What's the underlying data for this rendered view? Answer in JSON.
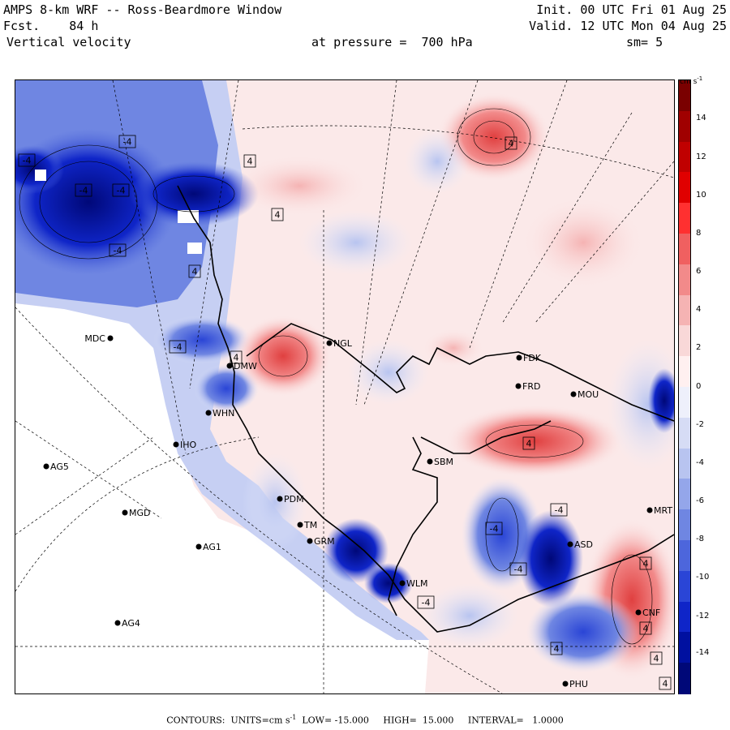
{
  "header": {
    "title_left": "AMPS 8-km WRF -- Ross-Beardmore Window",
    "fcst_label": "Fcst.    84 h",
    "field": "Vertical velocity",
    "init": "Init. 00 UTC Fri 01 Aug 25",
    "valid": "Valid. 12 UTC Mon 04 Aug 25",
    "pressure": "at pressure =  700 hPa",
    "smooth": "sm= 5"
  },
  "colorbar": {
    "units": "cm s",
    "units_exp": "-1",
    "ticks": [
      "14",
      "12",
      "10",
      "8",
      "6",
      "4",
      "2",
      "0",
      "-2",
      "-4",
      "-6",
      "-8",
      "-10",
      "-12",
      "-14"
    ],
    "colors": [
      "#7a0000",
      "#a00000",
      "#c00000",
      "#e00000",
      "#ff3030",
      "#f06060",
      "#f28a8a",
      "#f5b3b3",
      "#f9d8d8",
      "#fff0f0",
      "#eef0fb",
      "#d6dcf5",
      "#b8c4f0",
      "#94a6ea",
      "#6f86e2",
      "#4d66dc",
      "#2a45d6",
      "#0f25c8",
      "#0010a0",
      "#000878"
    ]
  },
  "stations": [
    {
      "id": "MDC"
    },
    {
      "id": "NGL"
    },
    {
      "id": "FDK"
    },
    {
      "id": "FRD"
    },
    {
      "id": "MOU"
    },
    {
      "id": "DMW"
    },
    {
      "id": "WHN"
    },
    {
      "id": "IHO"
    },
    {
      "id": "AG5"
    },
    {
      "id": "SBM"
    },
    {
      "id": "MGD"
    },
    {
      "id": "PDM"
    },
    {
      "id": "TM"
    },
    {
      "id": "GRM"
    },
    {
      "id": "AG1"
    },
    {
      "id": "MRT"
    },
    {
      "id": "ASD"
    },
    {
      "id": "AG4"
    },
    {
      "id": "WLM"
    },
    {
      "id": "CNF"
    },
    {
      "id": "PHU"
    }
  ],
  "contour_labels": [
    "4",
    "-4"
  ],
  "footer": {
    "text_a": "CONTOURS:  UNITS=cm s",
    "exp": "-1",
    "text_b": "  LOW= -15.000     HIGH=  15.000     INTERVAL=   1.0000"
  }
}
